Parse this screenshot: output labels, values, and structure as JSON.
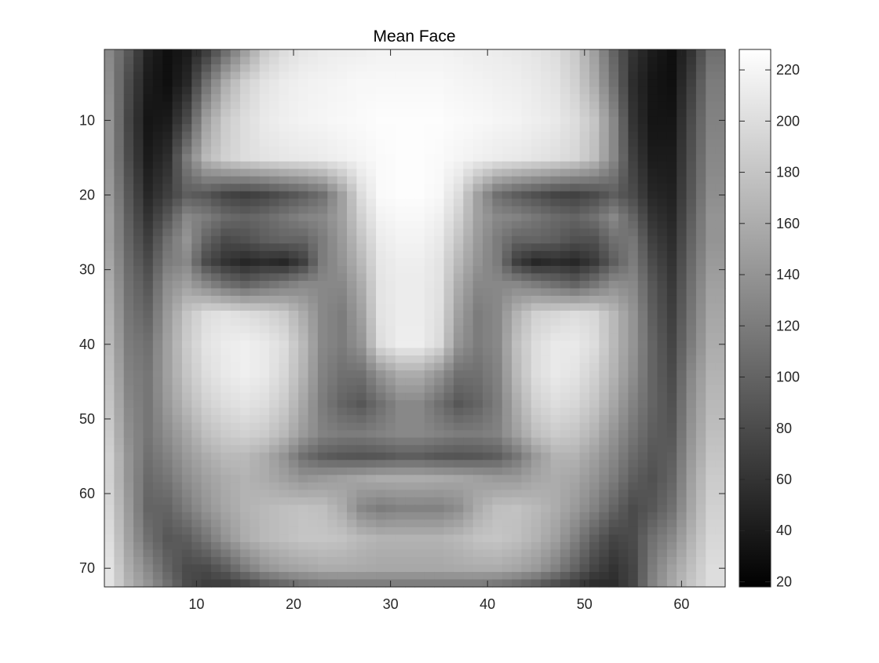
{
  "chart_data": {
    "type": "heatmap",
    "title": "Mean Face",
    "xlabel": "",
    "ylabel": "",
    "xlim": [
      0.5,
      64.5
    ],
    "ylim": [
      0.5,
      72.5
    ],
    "y_axis_direction": "reversed",
    "x_ticks": [
      10,
      20,
      30,
      40,
      50,
      60
    ],
    "y_ticks": [
      10,
      20,
      30,
      40,
      50,
      60,
      70
    ],
    "colormap": "gray",
    "colorbar": {
      "limits": [
        18,
        228
      ],
      "ticks": [
        20,
        40,
        60,
        80,
        100,
        120,
        140,
        160,
        180,
        200,
        220
      ],
      "position": "right"
    },
    "grid": false,
    "image": {
      "rows": 72,
      "cols": 64,
      "description_of_values": "grayscale intensity 18-228",
      "columns_sample": [
        1,
        3,
        5,
        7,
        9,
        11,
        13,
        15,
        17,
        19,
        21,
        23,
        25,
        27,
        29,
        31,
        33,
        35,
        37,
        39,
        41,
        43,
        45,
        47,
        49,
        51,
        53,
        55,
        57,
        59,
        61,
        63
      ],
      "rows_sample": [
        1,
        5,
        10,
        15,
        20,
        23,
        26,
        29,
        32,
        36,
        40,
        44,
        48,
        52,
        55,
        58,
        62,
        66,
        70,
        72
      ],
      "values_sample": [
        [
          130,
          90,
          45,
          30,
          40,
          70,
          110,
          150,
          185,
          200,
          208,
          212,
          214,
          216,
          218,
          218,
          218,
          218,
          216,
          214,
          212,
          210,
          206,
          200,
          185,
          150,
          100,
          60,
          40,
          30,
          60,
          110
        ],
        [
          135,
          80,
          40,
          30,
          50,
          110,
          160,
          190,
          205,
          212,
          216,
          218,
          220,
          222,
          222,
          222,
          222,
          222,
          220,
          218,
          216,
          214,
          210,
          205,
          190,
          160,
          110,
          55,
          35,
          30,
          70,
          120
        ],
        [
          140,
          75,
          35,
          40,
          80,
          150,
          185,
          200,
          210,
          215,
          218,
          220,
          222,
          224,
          226,
          226,
          226,
          226,
          224,
          222,
          220,
          218,
          214,
          210,
          200,
          180,
          130,
          60,
          35,
          35,
          80,
          125
        ],
        [
          140,
          80,
          40,
          55,
          120,
          170,
          190,
          200,
          205,
          208,
          210,
          212,
          216,
          220,
          224,
          226,
          226,
          224,
          220,
          216,
          212,
          210,
          206,
          202,
          195,
          175,
          130,
          70,
          40,
          40,
          85,
          130
        ],
        [
          145,
          90,
          50,
          70,
          95,
          90,
          75,
          70,
          75,
          85,
          95,
          110,
          150,
          200,
          224,
          226,
          226,
          222,
          200,
          150,
          110,
          95,
          85,
          75,
          72,
          80,
          95,
          80,
          50,
          45,
          90,
          135
        ],
        [
          150,
          95,
          60,
          90,
          130,
          120,
          105,
          100,
          105,
          115,
          125,
          130,
          150,
          190,
          218,
          222,
          222,
          216,
          190,
          150,
          130,
          125,
          115,
          105,
          100,
          110,
          130,
          100,
          60,
          50,
          95,
          140
        ],
        [
          150,
          100,
          70,
          110,
          140,
          100,
          80,
          85,
          95,
          100,
          100,
          120,
          145,
          180,
          212,
          218,
          218,
          210,
          180,
          145,
          120,
          100,
          100,
          95,
          85,
          85,
          110,
          115,
          70,
          55,
          100,
          140
        ],
        [
          155,
          105,
          80,
          120,
          130,
          80,
          60,
          50,
          55,
          50,
          70,
          120,
          140,
          170,
          208,
          214,
          214,
          206,
          170,
          140,
          120,
          70,
          50,
          55,
          50,
          65,
          95,
          120,
          80,
          60,
          105,
          145
        ],
        [
          160,
          110,
          90,
          135,
          150,
          130,
          110,
          100,
          110,
          120,
          130,
          130,
          130,
          160,
          206,
          212,
          212,
          204,
          160,
          130,
          130,
          130,
          120,
          110,
          100,
          115,
          135,
          130,
          90,
          65,
          110,
          150
        ],
        [
          165,
          115,
          100,
          145,
          180,
          200,
          205,
          200,
          195,
          185,
          160,
          130,
          120,
          150,
          205,
          212,
          212,
          202,
          150,
          120,
          130,
          165,
          190,
          195,
          200,
          195,
          170,
          140,
          95,
          70,
          115,
          155
        ],
        [
          170,
          120,
          110,
          150,
          185,
          205,
          212,
          215,
          210,
          200,
          170,
          130,
          120,
          140,
          200,
          214,
          214,
          198,
          140,
          120,
          130,
          175,
          200,
          210,
          210,
          200,
          170,
          140,
          100,
          75,
          120,
          160
        ],
        [
          175,
          125,
          115,
          150,
          180,
          200,
          210,
          215,
          210,
          195,
          165,
          125,
          110,
          110,
          140,
          160,
          160,
          140,
          110,
          110,
          125,
          170,
          200,
          210,
          205,
          190,
          165,
          135,
          100,
          80,
          130,
          165
        ],
        [
          180,
          130,
          115,
          145,
          170,
          190,
          200,
          205,
          200,
          185,
          155,
          120,
          100,
          90,
          110,
          130,
          130,
          110,
          90,
          100,
          120,
          160,
          190,
          200,
          195,
          180,
          155,
          125,
          100,
          85,
          135,
          170
        ],
        [
          185,
          135,
          115,
          135,
          155,
          175,
          185,
          190,
          185,
          170,
          145,
          125,
          120,
          120,
          125,
          130,
          130,
          125,
          120,
          120,
          125,
          150,
          175,
          185,
          180,
          165,
          140,
          115,
          95,
          90,
          140,
          175
        ],
        [
          190,
          140,
          110,
          125,
          145,
          160,
          170,
          170,
          160,
          140,
          110,
          95,
          90,
          88,
          90,
          95,
          95,
          90,
          88,
          90,
          95,
          115,
          145,
          165,
          165,
          150,
          130,
          105,
          90,
          95,
          145,
          180
        ],
        [
          190,
          140,
          105,
          115,
          135,
          150,
          160,
          165,
          160,
          150,
          140,
          145,
          150,
          155,
          160,
          160,
          160,
          158,
          155,
          150,
          145,
          145,
          155,
          160,
          155,
          140,
          120,
          95,
          85,
          100,
          150,
          185
        ],
        [
          195,
          145,
          100,
          100,
          120,
          140,
          155,
          165,
          170,
          175,
          178,
          175,
          160,
          130,
          120,
          125,
          125,
          125,
          135,
          160,
          175,
          178,
          170,
          160,
          145,
          125,
          100,
          80,
          90,
          110,
          155,
          190
        ],
        [
          200,
          150,
          110,
          90,
          95,
          115,
          140,
          160,
          170,
          175,
          180,
          180,
          178,
          170,
          165,
          165,
          165,
          165,
          170,
          178,
          180,
          175,
          165,
          150,
          125,
          95,
          75,
          80,
          110,
          130,
          165,
          195
        ],
        [
          205,
          160,
          130,
          100,
          80,
          80,
          95,
          120,
          140,
          150,
          155,
          160,
          160,
          158,
          156,
          156,
          156,
          156,
          158,
          160,
          160,
          155,
          145,
          125,
          100,
          75,
          60,
          75,
          120,
          150,
          175,
          200
        ],
        [
          205,
          165,
          140,
          110,
          80,
          70,
          70,
          80,
          95,
          105,
          115,
          120,
          122,
          122,
          122,
          122,
          122,
          122,
          122,
          122,
          118,
          110,
          100,
          85,
          70,
          55,
          55,
          75,
          125,
          155,
          180,
          200
        ]
      ]
    }
  }
}
